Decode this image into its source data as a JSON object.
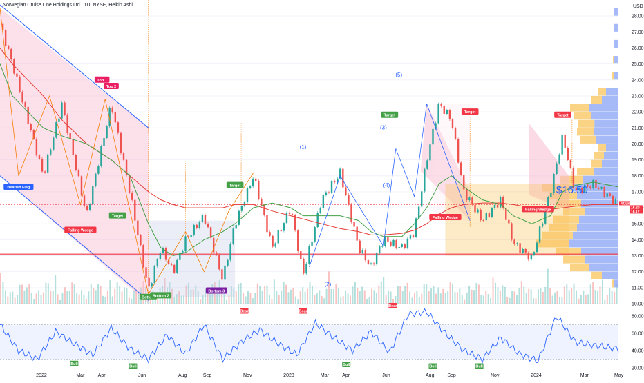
{
  "title": "Norwegian Cruise Line Holdings Ltd., 1D, NYSE, Heikin Ashi",
  "currency": "USD",
  "price_overlay": "$16.50",
  "price_tags": [
    {
      "text": "NCLH",
      "color": "#f23645"
    },
    {
      "text": "16.20",
      "color": "#f23645"
    },
    {
      "text": "16.17",
      "color": "#f23645"
    }
  ],
  "colors": {
    "up": "#26a69a",
    "down": "#ef5350",
    "ma_long": "#e53935",
    "ma_mid": "#43a047",
    "rsi": "#2962ff",
    "channel": "#2962ff",
    "support": "#f23645",
    "zigzag": "#f57c00"
  },
  "pattern_labels": [
    {
      "text": "Bearish Flag",
      "color": "#2962ff"
    },
    {
      "text": "Top 1",
      "color": "#e91e63"
    },
    {
      "text": "Top 2",
      "color": "#e91e63"
    },
    {
      "text": "Falling Wedge",
      "color": "#f23645"
    },
    {
      "text": "Target",
      "color": "#43a047"
    },
    {
      "text": "Bottom",
      "color": "#43a047"
    },
    {
      "text": "Bottom 2",
      "color": "#43a047"
    },
    {
      "text": "Target",
      "color": "#43a047"
    },
    {
      "text": "Bottom 3",
      "color": "#7b1fa2"
    },
    {
      "text": "Target",
      "color": "#43a047"
    },
    {
      "text": "Target",
      "color": "#f23645"
    },
    {
      "text": "Falling Wedge",
      "color": "#f23645"
    },
    {
      "text": "Target",
      "color": "#f23645"
    },
    {
      "text": "Falling Wedge",
      "color": "#f23645"
    }
  ],
  "wave_labels": [
    "(1)",
    "(2)",
    "(3)",
    "(4)",
    "(5)"
  ],
  "rsi_labels": [
    {
      "text": "Bull",
      "color": "#43a047"
    },
    {
      "text": "Bull",
      "color": "#43a047"
    },
    {
      "text": "Bear",
      "color": "#f23645"
    },
    {
      "text": "Bear",
      "color": "#f23645"
    },
    {
      "text": "Bull",
      "color": "#43a047"
    },
    {
      "text": "Bear",
      "color": "#f23645"
    },
    {
      "text": "Bull",
      "color": "#43a047"
    },
    {
      "text": "Bull",
      "color": "#43a047"
    }
  ],
  "chart_data": [
    {
      "type": "line",
      "subtype": "heikin-ashi candlestick",
      "title": "Norwegian Cruise Line Holdings Ltd., 1D, NYSE, Heikin Ashi",
      "xlabel": "",
      "ylabel": "",
      "ylim": [
        10,
        29
      ],
      "yticks": [
        "10.00",
        "11.00",
        "12.00",
        "13.00",
        "14.00",
        "15.00",
        "16.00",
        "17.00",
        "18.00",
        "19.00",
        "20.00",
        "21.00",
        "22.00",
        "23.00",
        "24.00",
        "25.00",
        "26.00",
        "27.00",
        "28.00"
      ],
      "xticks": [
        "2022",
        "Mar",
        "Apr",
        "Jun",
        "Aug",
        "Sep",
        "Nov",
        "2023",
        "Mar",
        "Apr",
        "Jun",
        "Aug",
        "Sep",
        "Nov",
        "2024",
        "Mar",
        "May"
      ],
      "x_fraction": [
        0.0,
        0.02,
        0.07,
        0.1,
        0.14,
        0.18,
        0.21,
        0.24,
        0.26,
        0.28,
        0.3,
        0.33,
        0.36,
        0.38,
        0.41,
        0.44,
        0.47,
        0.49,
        0.52,
        0.55,
        0.58,
        0.6,
        0.62,
        0.65,
        0.67,
        0.69,
        0.71,
        0.73,
        0.75,
        0.78,
        0.81,
        0.83,
        0.86,
        0.89,
        0.91,
        0.93,
        0.96,
        1.0
      ],
      "close": [
        27.5,
        25.0,
        18.0,
        22.5,
        15.5,
        22.5,
        17.0,
        10.8,
        13.5,
        12.0,
        14.0,
        15.5,
        11.5,
        15.0,
        18.0,
        13.5,
        16.0,
        11.8,
        16.5,
        18.2,
        13.5,
        12.3,
        14.0,
        13.5,
        14.5,
        19.0,
        22.5,
        21.5,
        17.0,
        15.2,
        16.5,
        13.8,
        12.8,
        17.0,
        20.5,
        17.0,
        17.5,
        16.2
      ],
      "ma_long": [
        26.0,
        25.0,
        23.0,
        21.5,
        20.0,
        19.0,
        18.0,
        17.0,
        16.5,
        16.2,
        16.0,
        16.0,
        16.0,
        16.2,
        16.2,
        15.8,
        15.5,
        15.3,
        15.0,
        14.7,
        14.5,
        14.3,
        14.3,
        14.4,
        14.6,
        15.0,
        15.6,
        16.0,
        16.2,
        16.3,
        16.3,
        16.2,
        16.0,
        15.9,
        16.0,
        16.1,
        16.2,
        16.2
      ],
      "ma_mid": [
        25.0,
        23.0,
        21.0,
        20.5,
        20.0,
        19.0,
        18.0,
        15.0,
        13.5,
        13.0,
        13.2,
        14.0,
        14.5,
        15.0,
        16.0,
        16.3,
        16.0,
        15.5,
        15.5,
        15.5,
        15.2,
        14.5,
        14.2,
        14.2,
        15.0,
        16.0,
        17.5,
        18.0,
        17.3,
        16.5,
        16.2,
        15.5,
        15.0,
        15.5,
        17.0,
        17.4,
        17.6,
        17.3
      ]
    },
    {
      "type": "line",
      "title": "",
      "ylabel": "",
      "ylim": [
        16,
        88
      ],
      "yticks": [
        "20.00",
        "40.00",
        "60.00",
        "80.00"
      ],
      "x_fraction": [
        0.0,
        0.03,
        0.06,
        0.09,
        0.12,
        0.15,
        0.18,
        0.21,
        0.24,
        0.27,
        0.3,
        0.33,
        0.36,
        0.39,
        0.42,
        0.45,
        0.48,
        0.51,
        0.54,
        0.57,
        0.6,
        0.63,
        0.66,
        0.69,
        0.72,
        0.75,
        0.78,
        0.81,
        0.84,
        0.87,
        0.9,
        0.93,
        0.96,
        1.0
      ],
      "rsi": [
        70,
        40,
        30,
        62,
        48,
        35,
        66,
        42,
        30,
        58,
        36,
        70,
        30,
        50,
        64,
        48,
        35,
        72,
        55,
        40,
        62,
        38,
        82,
        85,
        60,
        40,
        30,
        55,
        36,
        28,
        80,
        50,
        46,
        42
      ],
      "bands": [
        30,
        50,
        70
      ]
    }
  ]
}
